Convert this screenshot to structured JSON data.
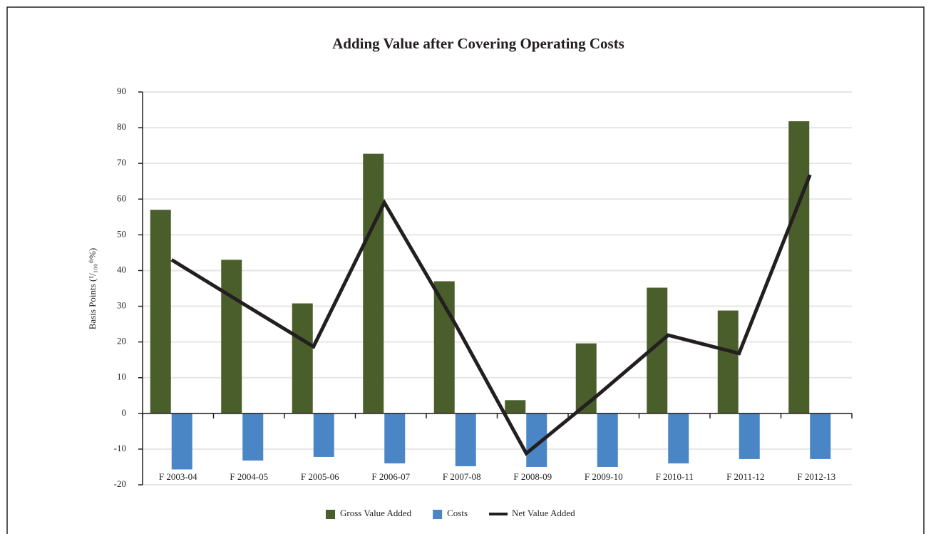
{
  "chart_data": {
    "type": "bar",
    "title": "Adding Value after Covering Operating Costs",
    "y_label": "Basis Points (¹/₁₀₀ᵗʰ%)",
    "categories": [
      "F 2003-04",
      "F 2004-05",
      "F 2005-06",
      "F 2006-07",
      "F 2007-08",
      "F 2008-09",
      "F 2009-10",
      "F 2010-11",
      "F 2011-12",
      "F 2012-13"
    ],
    "series": [
      {
        "name": "Gross Value Added",
        "type": "bar",
        "color": "#4a5e2b",
        "values": [
          57,
          43,
          30.8,
          72.7,
          37,
          3.7,
          19.6,
          35.2,
          28.8,
          81.8
        ]
      },
      {
        "name": "Costs",
        "type": "bar",
        "color": "#4a86c6",
        "values": [
          -15.7,
          -13.2,
          -12.2,
          -14,
          -14.8,
          -15,
          -15,
          -14,
          -12.8,
          -12.8
        ]
      },
      {
        "name": "Net Value Added",
        "type": "line",
        "color": "#231f20",
        "values": [
          43,
          30.8,
          18.7,
          59,
          25,
          -11.2,
          5,
          21.9,
          16.8,
          66.8
        ]
      }
    ],
    "ylim": [
      -20,
      90
    ],
    "yticks": [
      -20,
      -10,
      0,
      10,
      20,
      30,
      40,
      50,
      60,
      70,
      80,
      90
    ],
    "grid": true,
    "legend": "bottom"
  }
}
